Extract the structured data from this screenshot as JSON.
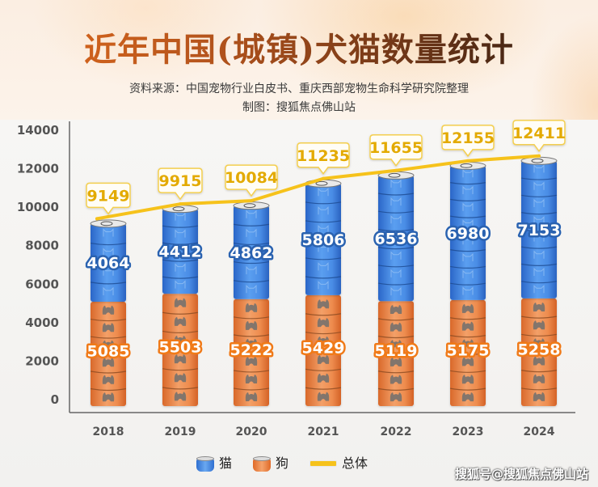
{
  "header": {
    "title": "近年中国(城镇)犬猫数量统计",
    "source": "资料来源：中国宠物行业白皮书、重庆西部宠物生命科学研究院整理",
    "maker": "制图：搜狐焦点佛山站"
  },
  "legend": {
    "cat": "猫",
    "dog": "狗",
    "total": "总体"
  },
  "watermark": "搜狐号@搜狐焦点佛山站",
  "colors": {
    "cat": "#3b7fd9",
    "cat_label": "#2a62b0",
    "dog": "#ec8a4c",
    "dog_label": "#f07a18",
    "total": "#f6c21b",
    "total_label": "#e3aa00"
  },
  "chart_data": {
    "type": "bar",
    "stacked": true,
    "title": "近年中国(城镇)犬猫数量统计",
    "xlabel": "",
    "ylabel": "",
    "categories": [
      "2018",
      "2019",
      "2020",
      "2021",
      "2022",
      "2023",
      "2024"
    ],
    "series": [
      {
        "name": "狗",
        "key": "dog",
        "values": [
          5085,
          5503,
          5222,
          5429,
          5119,
          5175,
          5258
        ]
      },
      {
        "name": "猫",
        "key": "cat",
        "values": [
          4064,
          4412,
          4862,
          5806,
          6536,
          6980,
          7153
        ]
      },
      {
        "name": "总体",
        "key": "total",
        "type": "line",
        "values": [
          9149,
          9915,
          10084,
          11235,
          11655,
          12155,
          12411
        ]
      }
    ],
    "ylim": [
      0,
      14000
    ],
    "yticks": [
      0,
      2000,
      4000,
      6000,
      8000,
      10000,
      12000,
      14000
    ],
    "grid": false,
    "legend_position": "bottom"
  }
}
